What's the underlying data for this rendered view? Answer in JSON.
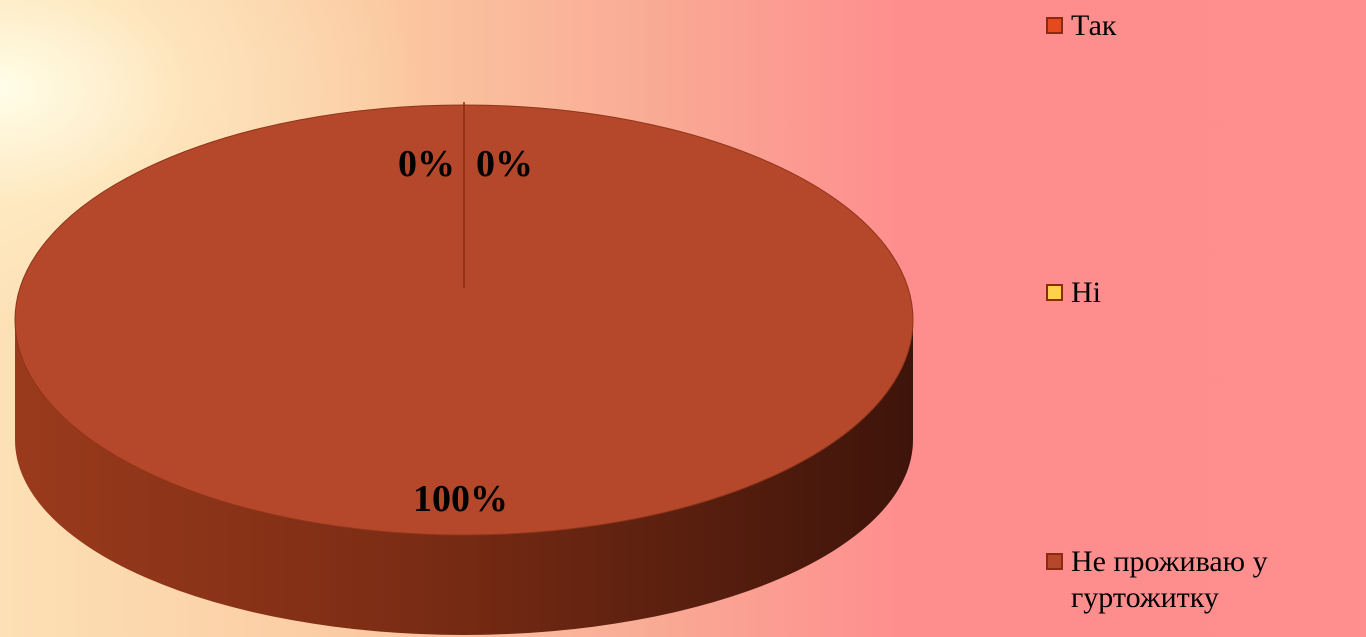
{
  "chart_data": {
    "type": "pie",
    "style": "3d",
    "categories": [
      "Так",
      "Ні",
      "Не проживаю у гуртожитку"
    ],
    "values": [
      0,
      0,
      100
    ],
    "data_labels": [
      "0%",
      "0%",
      "100%"
    ],
    "colors": [
      "#e44a1e",
      "#ffd04a",
      "#b5482a"
    ],
    "legend_position": "right",
    "title": ""
  },
  "legend": {
    "items": [
      {
        "label": "Так",
        "color": "#e44a1e"
      },
      {
        "label": "Ні",
        "color": "#ffd04a"
      },
      {
        "label": "Не проживаю у гуртожитку",
        "color": "#b5482a"
      }
    ]
  }
}
